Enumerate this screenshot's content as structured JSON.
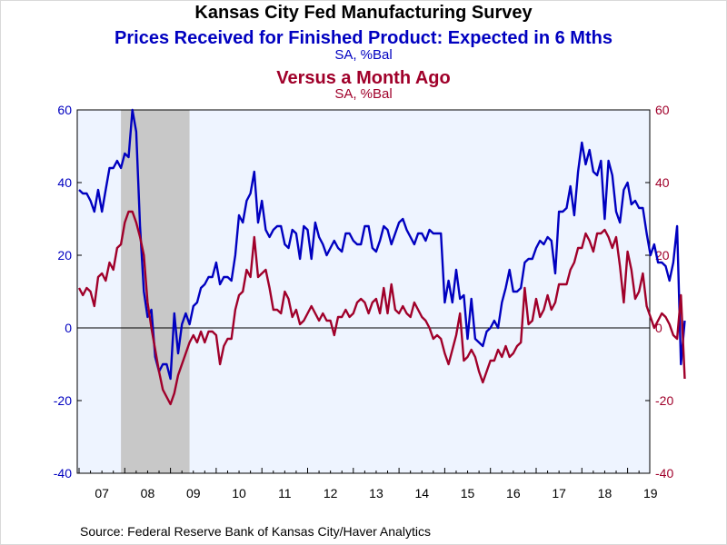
{
  "header": {
    "title": "Kansas City Fed Manufacturing Survey",
    "series1_title": "Prices Received for Finished Product: Expected in 6 Mths",
    "series1_unit": "SA, %Bal",
    "series2_title": "Versus a Month Ago",
    "series2_unit": "SA, %Bal"
  },
  "source": "Source:  Federal Reserve Bank of Kansas City/Haver Analytics",
  "colors": {
    "series1": "#0000c0",
    "series2": "#a0002a",
    "plot_bg": "#eef4ff",
    "recession": "#c8c8c8"
  },
  "chart_data": {
    "type": "line",
    "title": "Kansas City Fed Manufacturing Survey",
    "x_start": "2007-01",
    "x_frequency": "monthly",
    "x_ticks": [
      "07",
      "08",
      "09",
      "10",
      "11",
      "12",
      "13",
      "14",
      "15",
      "16",
      "17",
      "18",
      "19"
    ],
    "y_left": {
      "ticks": [
        60,
        40,
        20,
        0,
        -20,
        -40
      ],
      "range": [
        -40,
        60
      ]
    },
    "y_right": {
      "ticks": [
        60,
        40,
        20,
        0,
        -20,
        -40
      ],
      "range": [
        -40,
        60
      ]
    },
    "zero_line": true,
    "recession": {
      "start": "2007-12",
      "end": "2009-06"
    },
    "series": [
      {
        "name": "Prices Received for Finished Product: Expected in 6 Mths",
        "axis": "left",
        "values": [
          38,
          37,
          37,
          35,
          32,
          38,
          32,
          38,
          44,
          44,
          46,
          44,
          48,
          47,
          60,
          54,
          28,
          10,
          3,
          5,
          -8,
          -12,
          -10,
          -10,
          -14,
          4,
          -7,
          1,
          4,
          1,
          6,
          7,
          11,
          12,
          14,
          14,
          18,
          12,
          14,
          14,
          13,
          20,
          31,
          29,
          35,
          37,
          43,
          29,
          35,
          27,
          25,
          27,
          28,
          28,
          23,
          22,
          27,
          26,
          19,
          28,
          27,
          19,
          29,
          25,
          23,
          20,
          22,
          24,
          22,
          21,
          26,
          26,
          24,
          23,
          23,
          28,
          28,
          22,
          21,
          24,
          28,
          27,
          23,
          26,
          29,
          30,
          27,
          25,
          23,
          26,
          26,
          24,
          27,
          26,
          26,
          26,
          7,
          13,
          7,
          16,
          8,
          9,
          -3,
          8,
          -3,
          -4,
          -5,
          -1,
          0,
          2,
          0,
          7,
          11,
          16,
          10,
          10,
          11,
          18,
          19,
          19,
          22,
          24,
          23,
          25,
          24,
          15,
          32,
          32,
          33,
          39,
          31,
          43,
          51,
          45,
          49,
          43,
          42,
          46,
          30,
          46,
          42,
          32,
          29,
          38,
          40,
          34,
          35,
          33,
          33,
          26,
          20,
          23,
          18,
          18,
          17,
          13,
          18,
          28,
          -10,
          2
        ]
      },
      {
        "name": "Versus a Month Ago",
        "axis": "right",
        "values": [
          11,
          9,
          11,
          10,
          6,
          14,
          15,
          13,
          18,
          16,
          22,
          23,
          29,
          32,
          32,
          29,
          25,
          20,
          7,
          0,
          -6,
          -12,
          -17,
          -19,
          -21,
          -18,
          -13,
          -10,
          -7,
          -4,
          -2,
          -4,
          -1,
          -4,
          -1,
          -1,
          -2,
          -10,
          -5,
          -3,
          -3,
          5,
          9,
          10,
          16,
          14,
          25,
          14,
          15,
          16,
          11,
          5,
          5,
          4,
          10,
          8,
          3,
          5,
          1,
          2,
          4,
          6,
          4,
          2,
          4,
          2,
          2,
          -2,
          3,
          3,
          5,
          3,
          4,
          7,
          8,
          7,
          4,
          7,
          8,
          4,
          11,
          4,
          12,
          5,
          4,
          6,
          4,
          3,
          7,
          5,
          3,
          2,
          0,
          -3,
          -2,
          -3,
          -7,
          -10,
          -6,
          -2,
          4,
          -9,
          -8,
          -6,
          -8,
          -12,
          -15,
          -12,
          -9,
          -9,
          -6,
          -8,
          -5,
          -8,
          -7,
          -5,
          -4,
          11,
          1,
          2,
          8,
          3,
          5,
          9,
          5,
          7,
          12,
          12,
          12,
          16,
          18,
          22,
          22,
          26,
          24,
          21,
          26,
          26,
          27,
          25,
          22,
          25,
          17,
          7,
          21,
          16,
          8,
          10,
          15,
          6,
          3,
          0,
          2,
          4,
          3,
          1,
          -2,
          -3,
          9,
          -14
        ]
      }
    ]
  }
}
